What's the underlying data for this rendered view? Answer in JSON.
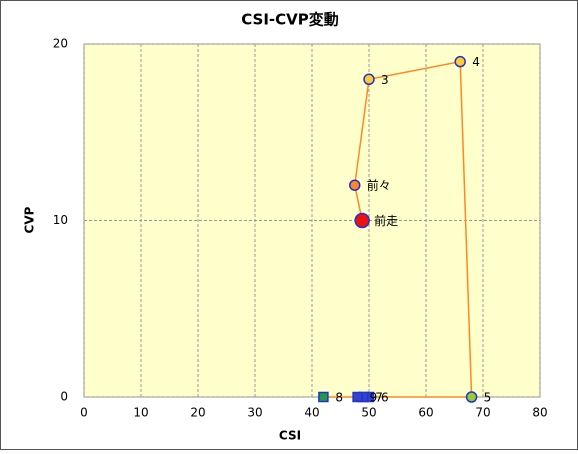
{
  "chart_data": {
    "type": "scatter",
    "title": "CSI-CVP変動",
    "xlabel": "CSI",
    "ylabel": "CVP",
    "labels": [
      "前走",
      "前々",
      "3",
      "4",
      "5",
      "6",
      "7",
      "8",
      "9"
    ],
    "x": [
      48.8,
      47.5,
      50,
      66,
      68,
      50,
      49,
      42,
      48
    ],
    "y": [
      10,
      12,
      18,
      19,
      0,
      0,
      0,
      0,
      0
    ],
    "colors": [
      "#ee1111",
      "#ff8822",
      "#ffcc33",
      "#ffcc33",
      "#99cc33",
      "#3344cc",
      "#3344cc",
      "#229944",
      "#3344cc"
    ],
    "markers": [
      "large-circle",
      "circle",
      "circle",
      "circle",
      "circle",
      "square",
      "square",
      "square",
      "square"
    ],
    "line_color": "#ff8822",
    "xlim": [
      0,
      80
    ],
    "ylim": [
      0,
      20
    ],
    "xticks": [
      0,
      10,
      20,
      30,
      40,
      50,
      60,
      70,
      80
    ],
    "yticks": [
      0,
      10,
      20
    ],
    "grid": true
  }
}
